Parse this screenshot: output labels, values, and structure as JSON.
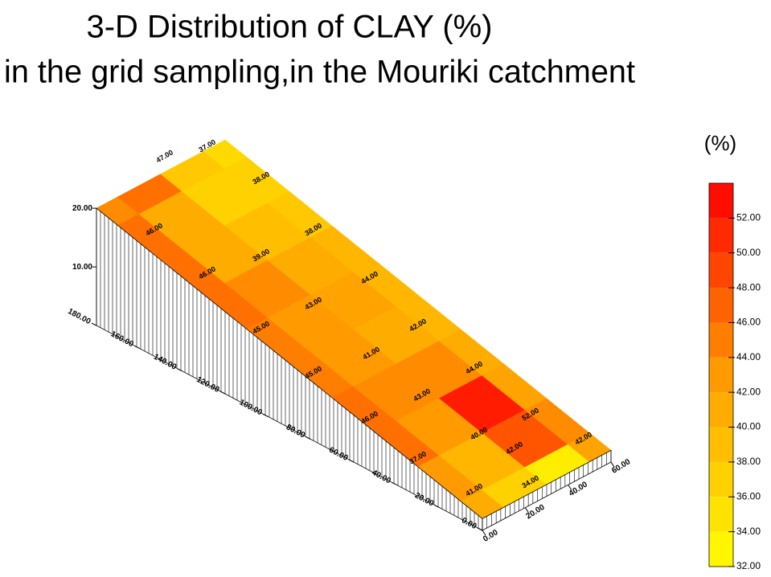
{
  "chart_data": {
    "type": "surface",
    "title": "3-D Distribution of CLAY (%)",
    "subtitle": "in the grid sampling,in the Mouriki catchment",
    "colorbar_title": "(%)",
    "x": [
      0,
      20,
      40,
      60,
      80,
      100,
      120,
      140,
      160,
      180
    ],
    "y": [
      0,
      20,
      40,
      60
    ],
    "values": [
      [
        41,
        37,
        34,
        42
      ],
      [
        43,
        40,
        48,
        44
      ],
      [
        46,
        43,
        52,
        42
      ],
      [
        46,
        44,
        44,
        41
      ],
      [
        45,
        43,
        41,
        40
      ],
      [
        45,
        43,
        42,
        40
      ],
      [
        46,
        44,
        41,
        40
      ],
      [
        46,
        41,
        39,
        38
      ],
      [
        46,
        41,
        37,
        37
      ],
      [
        44,
        46,
        38,
        36
      ]
    ],
    "elevation": [
      2,
      4,
      6,
      8,
      10,
      12,
      14,
      16,
      18,
      20
    ],
    "xlim": [
      0,
      180
    ],
    "ylim": [
      0,
      60
    ],
    "zlim": [
      0,
      20
    ],
    "xticks": [
      {
        "value": 0,
        "label": "0.00"
      },
      {
        "value": 20,
        "label": "20.00"
      },
      {
        "value": 40,
        "label": "40.00"
      },
      {
        "value": 60,
        "label": "60.00"
      },
      {
        "value": 80,
        "label": "80.00"
      },
      {
        "value": 100,
        "label": "100.00"
      },
      {
        "value": 120,
        "label": "120.00"
      },
      {
        "value": 140,
        "label": "140.00"
      },
      {
        "value": 160,
        "label": "160.00"
      },
      {
        "value": 180,
        "label": "180.00"
      }
    ],
    "yticks": [
      {
        "value": 0,
        "label": "0.00"
      },
      {
        "value": 20,
        "label": "20.00"
      },
      {
        "value": 40,
        "label": "40.00"
      },
      {
        "value": 60,
        "label": "60.00"
      }
    ],
    "zticks": [
      {
        "value": 10,
        "label": "10.00"
      },
      {
        "value": 20,
        "label": "20.00"
      }
    ],
    "clim": [
      32,
      54
    ],
    "colormap": [
      "#ffff00",
      "#ff9a00",
      "#ff0000"
    ],
    "colorbar_ticks": [
      {
        "value": 32,
        "label": "32.00"
      },
      {
        "value": 34,
        "label": "34.00"
      },
      {
        "value": 36,
        "label": "36.00"
      },
      {
        "value": 38,
        "label": "38.00"
      },
      {
        "value": 40,
        "label": "40.00"
      },
      {
        "value": 42,
        "label": "42.00"
      },
      {
        "value": 44,
        "label": "44.00"
      },
      {
        "value": 46,
        "label": "46.00"
      },
      {
        "value": 48,
        "label": "48.00"
      },
      {
        "value": 50,
        "label": "50.00"
      },
      {
        "value": 52,
        "label": "52.00"
      }
    ],
    "contour_labels": [
      {
        "value": 47,
        "label": "47.00"
      },
      {
        "value": 37,
        "label": "37.00"
      },
      {
        "value": 38,
        "label": "38.00"
      },
      {
        "value": 38,
        "label": "38.00"
      },
      {
        "value": 46,
        "label": "46.00"
      },
      {
        "value": 39,
        "label": "39.00"
      },
      {
        "value": 44,
        "label": "44.00"
      },
      {
        "value": 46,
        "label": "46.00"
      },
      {
        "value": 43,
        "label": "43.00"
      },
      {
        "value": 42,
        "label": "42.00"
      },
      {
        "value": 41,
        "label": "41.00"
      },
      {
        "value": 45,
        "label": "45.00"
      },
      {
        "value": 44,
        "label": "44.00"
      },
      {
        "value": 45,
        "label": "45.00"
      },
      {
        "value": 43,
        "label": "43.00"
      },
      {
        "value": 46,
        "label": "46.00"
      },
      {
        "value": 52,
        "label": "52.00"
      },
      {
        "value": 40,
        "label": "40.00"
      },
      {
        "value": 42,
        "label": "42.00"
      },
      {
        "value": 42,
        "label": "42.00"
      },
      {
        "value": 37,
        "label": "37.00"
      },
      {
        "value": 41,
        "label": "41.00"
      },
      {
        "value": 34,
        "label": "34.00"
      }
    ]
  }
}
